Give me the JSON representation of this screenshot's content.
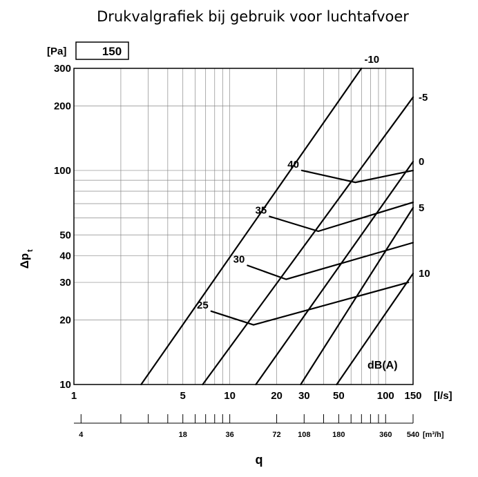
{
  "chart_data": {
    "type": "line",
    "title": "Drukvalgrafiek bij gebruik voor luchtafvoer",
    "xlabel": "q",
    "x_unit": "[l/s]",
    "x2_unit": "[m³/h]",
    "ylabel": "Δp",
    "ylabel_sub": "t",
    "y_unit": "[Pa]",
    "setpoint": "150",
    "xscale": "log",
    "yscale": "log",
    "xlim": [
      1,
      150
    ],
    "ylim": [
      10,
      300
    ],
    "x_ticks": [
      {
        "v": 1,
        "label": "1"
      },
      {
        "v": 5,
        "label": "5"
      },
      {
        "v": 10,
        "label": "10"
      },
      {
        "v": 20,
        "label": "20"
      },
      {
        "v": 30,
        "label": "30"
      },
      {
        "v": 50,
        "label": "50"
      },
      {
        "v": 100,
        "label": "100"
      },
      {
        "v": 150,
        "label": "150"
      }
    ],
    "y_ticks": [
      {
        "v": 10,
        "label": "10"
      },
      {
        "v": 20,
        "label": "20"
      },
      {
        "v": 30,
        "label": "30"
      },
      {
        "v": 40,
        "label": "40"
      },
      {
        "v": 50,
        "label": "50"
      },
      {
        "v": 100,
        "label": "100"
      },
      {
        "v": 200,
        "label": "200"
      },
      {
        "v": 300,
        "label": "300"
      }
    ],
    "x2_ticks": [
      {
        "v": 4,
        "label": "4"
      },
      {
        "v": 18,
        "label": "18"
      },
      {
        "v": 36,
        "label": "36"
      },
      {
        "v": 72,
        "label": "72"
      },
      {
        "v": 108,
        "label": "108"
      },
      {
        "v": 180,
        "label": "180"
      },
      {
        "v": 360,
        "label": "360"
      },
      {
        "v": 540,
        "label": "540"
      }
    ],
    "x2_marks": [
      4,
      7.2,
      10.8,
      14.4,
      18,
      21.6,
      25.2,
      28.8,
      32.4,
      36,
      72,
      108,
      144,
      180,
      216,
      252,
      288,
      324,
      360,
      540
    ],
    "x_grid": [
      2,
      3,
      4,
      5,
      6,
      7,
      8,
      9,
      10,
      20,
      30,
      40,
      50,
      60,
      70,
      80,
      90,
      100
    ],
    "y_grid": [
      20,
      30,
      40,
      50,
      60,
      70,
      80,
      90,
      100,
      200
    ],
    "correction_lines": [
      {
        "label": "-10",
        "points": [
          [
            2.7,
            10
          ],
          [
            70,
            300
          ]
        ]
      },
      {
        "label": "-5",
        "points": [
          [
            6.7,
            10
          ],
          [
            150,
            220
          ]
        ]
      },
      {
        "label": "0",
        "points": [
          [
            14.7,
            10
          ],
          [
            150,
            110
          ]
        ]
      },
      {
        "label": "5",
        "points": [
          [
            28.5,
            10
          ],
          [
            150,
            67
          ]
        ]
      },
      {
        "label": "10",
        "points": [
          [
            48.5,
            10
          ],
          [
            150,
            33
          ]
        ]
      }
    ],
    "sound_lines": [
      {
        "label": "40",
        "points": [
          [
            29,
            100
          ],
          [
            64,
            88
          ],
          [
            150,
            100
          ]
        ]
      },
      {
        "label": "35",
        "points": [
          [
            18,
            61
          ],
          [
            37,
            52
          ],
          [
            150,
            71
          ]
        ]
      },
      {
        "label": "30",
        "points": [
          [
            13,
            36
          ],
          [
            23,
            31
          ],
          [
            150,
            46
          ]
        ]
      },
      {
        "label": "25",
        "points": [
          [
            7.6,
            22
          ],
          [
            14.2,
            19
          ],
          [
            140,
            30
          ]
        ]
      }
    ],
    "sound_unit": "dB(A)",
    "grid": true
  }
}
